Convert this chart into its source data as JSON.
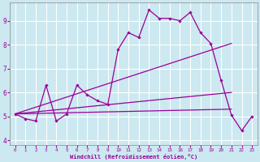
{
  "xlabel": "Windchill (Refroidissement éolien,°C)",
  "ylabel": "",
  "bg_color": "#cce8f0",
  "grid_color": "#ffffff",
  "line_color": "#990099",
  "xlim": [
    -0.5,
    23.5
  ],
  "ylim": [
    3.8,
    9.75
  ],
  "xticks": [
    0,
    1,
    2,
    3,
    4,
    5,
    6,
    7,
    8,
    9,
    10,
    11,
    12,
    13,
    14,
    15,
    16,
    17,
    18,
    19,
    20,
    21,
    22,
    23
  ],
  "yticks": [
    4,
    5,
    6,
    7,
    8,
    9
  ],
  "line1_x": [
    0,
    1,
    2,
    3,
    4,
    5,
    6,
    7,
    8,
    9,
    10,
    11,
    12,
    13,
    14,
    15,
    16,
    17,
    18,
    19,
    20,
    21,
    22,
    23
  ],
  "line1_y": [
    5.1,
    4.9,
    4.8,
    6.3,
    4.8,
    5.1,
    6.3,
    5.9,
    5.65,
    5.5,
    7.8,
    8.5,
    8.3,
    9.45,
    9.1,
    9.1,
    9.0,
    9.35,
    8.5,
    8.05,
    6.5,
    5.05,
    4.4,
    5.0
  ],
  "line2_x": [
    0,
    21
  ],
  "line2_y": [
    5.1,
    8.05
  ],
  "line3_x": [
    0,
    21
  ],
  "line3_y": [
    5.1,
    6.0
  ],
  "line4_x": [
    0,
    21
  ],
  "line4_y": [
    5.1,
    5.3
  ]
}
